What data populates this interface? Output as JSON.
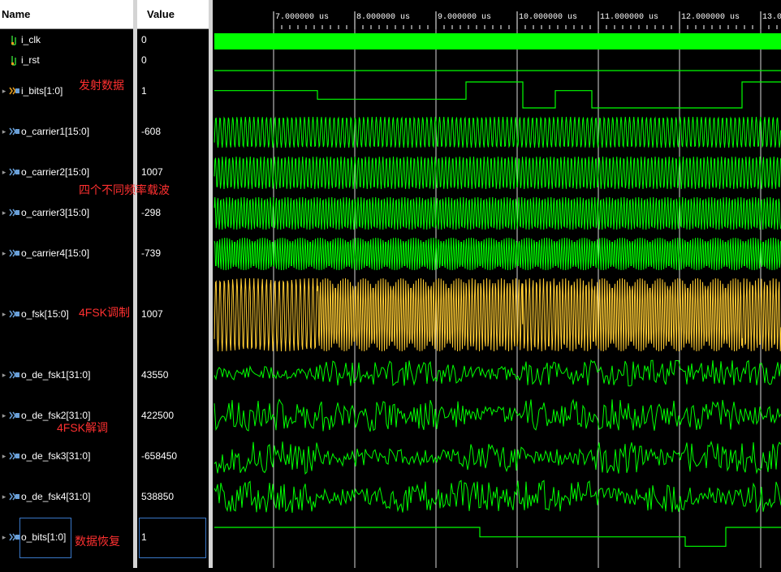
{
  "headers": {
    "name": "Name",
    "value": "Value"
  },
  "signals": [
    {
      "name": "i_clk",
      "value": "0",
      "icon": "bit-signal-icon",
      "expandable": false
    },
    {
      "name": "i_rst",
      "value": "0",
      "icon": "bit-signal-icon",
      "expandable": false
    },
    {
      "name": "i_bits[1:0]",
      "value": "1",
      "icon": "bus-signal-icon",
      "expandable": true
    },
    {
      "name": "o_carrier1[15:0]",
      "value": "-608",
      "icon": "bus-signal-icon",
      "expandable": true
    },
    {
      "name": "o_carrier2[15:0]",
      "value": "1007",
      "icon": "bus-signal-icon",
      "expandable": true
    },
    {
      "name": "o_carrier3[15:0]",
      "value": "-298",
      "icon": "bus-signal-icon",
      "expandable": true
    },
    {
      "name": "o_carrier4[15:0]",
      "value": "-739",
      "icon": "bus-signal-icon",
      "expandable": true
    },
    {
      "name": "o_fsk[15:0]",
      "value": "1007",
      "icon": "bus-signal-icon",
      "expandable": true
    },
    {
      "name": "o_de_fsk1[31:0]",
      "value": "43550",
      "icon": "bus-signal-icon",
      "expandable": true
    },
    {
      "name": "o_de_fsk2[31:0]",
      "value": "422500",
      "icon": "bus-signal-icon",
      "expandable": true
    },
    {
      "name": "o_de_fsk3[31:0]",
      "value": "-658450",
      "icon": "bus-signal-icon",
      "expandable": true
    },
    {
      "name": "o_de_fsk4[31:0]",
      "value": "538850",
      "icon": "bus-signal-icon",
      "expandable": true
    },
    {
      "name": "o_bits[1:0]",
      "value": "1",
      "icon": "bus-signal-icon",
      "expandable": true
    }
  ],
  "annotations": {
    "tx_data": "发射数据",
    "carriers": "四个不同频率载波",
    "modulation": "4FSK调制",
    "demodulation": "4FSK解调",
    "recovery": "数据恢复"
  },
  "time_ruler": {
    "ticks": [
      "7.000000 us",
      "8.000000 us",
      "9.000000 us",
      "10.000000 us",
      "11.000000 us",
      "12.000000 us",
      "13.0"
    ],
    "tick_us": [
      7,
      8,
      9,
      10,
      11,
      12,
      13
    ]
  },
  "colors": {
    "wave_green": "#00ff00",
    "fsk_yellow": "#ffcc33",
    "annotation_red": "#ff3030",
    "grid": "#ffffff"
  }
}
